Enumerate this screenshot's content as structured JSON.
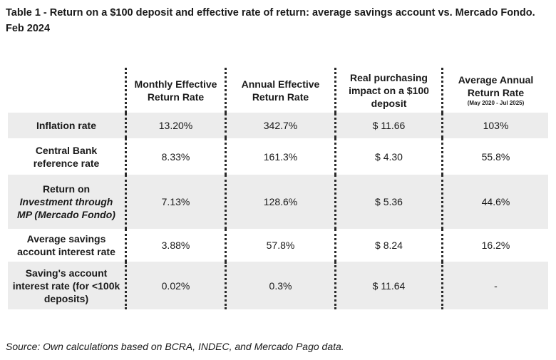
{
  "title": "Table 1 - Return on a $100 deposit and effective rate of return: average savings account vs. Mercado Fondo. Feb 2024",
  "columns": {
    "monthly": "Monthly Effective Return Rate",
    "annual": "Annual Effective Return Rate",
    "real_impact": "Real purchasing impact on a $100 deposit",
    "avg_annual": "Average Annual Return Rate",
    "avg_annual_period": "(May 2020 - Jul 2025)"
  },
  "rows": [
    {
      "label": "Inflation rate",
      "monthly": "13.20%",
      "annual": "342.7%",
      "real_impact": "$ 11.66",
      "avg_annual": "103%"
    },
    {
      "label": "Central Bank reference rate",
      "monthly": "8.33%",
      "annual": "161.3%",
      "real_impact": "$ 4.30",
      "avg_annual": "55.8%"
    },
    {
      "label_prefix": "Return on",
      "label_italic": "Investment through MP (Mercado Fondo)",
      "monthly": "7.13%",
      "annual": "128.6%",
      "real_impact": "$ 5.36",
      "avg_annual": "44.6%"
    },
    {
      "label": "Average savings account interest rate",
      "monthly": "3.88%",
      "annual": "57.8%",
      "real_impact": "$ 8.24",
      "avg_annual": "16.2%"
    },
    {
      "label": "Saving's account interest rate (for <100k deposits)",
      "monthly": "0.02%",
      "annual": "0.3%",
      "real_impact": "$ 11.64",
      "avg_annual": "-"
    }
  ],
  "source": "Source: Own calculations based on BCRA, INDEC, and Mercado Pago data."
}
